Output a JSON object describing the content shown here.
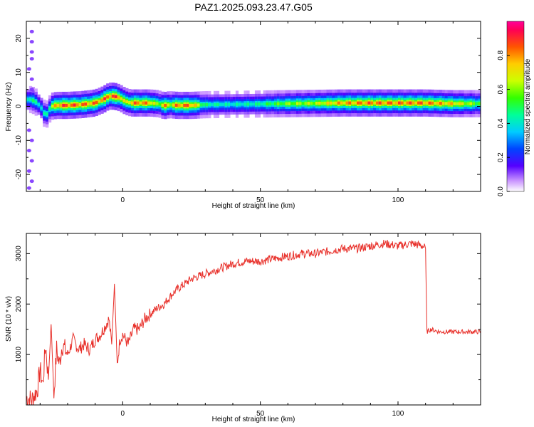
{
  "title": "PAZ1.2025.093.23.47.G05",
  "chart_data": [
    {
      "type": "heatmap",
      "xlabel": "Height of straight line (km)",
      "ylabel": "Frequency (Hz)",
      "xlim": [
        -35,
        130
      ],
      "ylim": [
        -25,
        25
      ],
      "xticks": [
        0,
        50,
        100
      ],
      "yticks": [
        -20,
        -10,
        0,
        10,
        20
      ],
      "grid": false,
      "ridge": {
        "description_points_x": [
          -33,
          -31,
          -29,
          -28,
          -26,
          -24,
          -20,
          -15,
          -10,
          -7,
          -5,
          -3,
          -1,
          1,
          3,
          5,
          10,
          13,
          15,
          17,
          20,
          25,
          30,
          40,
          50,
          60,
          70,
          80,
          90,
          100,
          110,
          120,
          130
        ],
        "freq": [
          2,
          1,
          -1,
          -3,
          0,
          0.3,
          0.3,
          0.5,
          1,
          2,
          3,
          3,
          2.5,
          1.5,
          1,
          1,
          1,
          0.8,
          0.2,
          0.5,
          0.3,
          0.3,
          0.5,
          0.6,
          0.7,
          0.8,
          0.9,
          1,
          1,
          1,
          1,
          0.8,
          0.8
        ],
        "amplitude": [
          0.5,
          0.5,
          0.4,
          0.5,
          0.6,
          0.9,
          0.95,
          0.9,
          0.9,
          0.9,
          0.95,
          0.95,
          0.9,
          0.7,
          0.85,
          0.9,
          0.85,
          0.6,
          0.9,
          0.7,
          0.9,
          0.9,
          0.5,
          0.45,
          0.5,
          0.65,
          0.7,
          0.85,
          0.9,
          0.9,
          0.9,
          0.8,
          0.6
        ]
      },
      "noise_points": [
        {
          "x": -33,
          "y": 22
        },
        {
          "x": -33,
          "y": 19
        },
        {
          "x": -33,
          "y": 16
        },
        {
          "x": -33,
          "y": 14
        },
        {
          "x": -34,
          "y": 11
        },
        {
          "x": -33,
          "y": 8
        },
        {
          "x": -33,
          "y": 5
        },
        {
          "x": -34,
          "y": -7
        },
        {
          "x": -33,
          "y": -10
        },
        {
          "x": -34,
          "y": -13
        },
        {
          "x": -33,
          "y": -16
        },
        {
          "x": -34,
          "y": -19
        },
        {
          "x": -33,
          "y": -22
        },
        {
          "x": -34,
          "y": -24
        }
      ],
      "colorbar": {
        "label": "Normalized spectral amplitude",
        "ticks": [
          "0.0",
          "0.2",
          "0.4",
          "0.6",
          "0.8"
        ],
        "range": [
          0,
          1
        ]
      }
    },
    {
      "type": "line",
      "xlabel": "Height of straight line (km)",
      "ylabel": "SNR (10 * v/v)",
      "xlim": [
        -35,
        130
      ],
      "ylim": [
        0,
        3400
      ],
      "xticks": [
        0,
        50,
        100
      ],
      "yticks": [
        1000,
        2000,
        3000
      ],
      "grid": false,
      "series": [
        {
          "color": "#e8302a",
          "x": [
            -35,
            -33,
            -31,
            -30,
            -29,
            -28,
            -27,
            -26,
            -25,
            -24,
            -23,
            -22,
            -20,
            -18,
            -16,
            -14,
            -12,
            -10,
            -8,
            -6,
            -5,
            -4,
            -3,
            -2,
            -1,
            0,
            2,
            4,
            6,
            8,
            10,
            12,
            15,
            18,
            20,
            25,
            30,
            35,
            40,
            45,
            50,
            55,
            60,
            65,
            70,
            75,
            80,
            85,
            90,
            95,
            100,
            105,
            109,
            110,
            110.5,
            112,
            115,
            120,
            125,
            130
          ],
          "y": [
            150,
            100,
            300,
            700,
            400,
            1200,
            500,
            1600,
            200,
            1100,
            800,
            1200,
            1000,
            1300,
            1100,
            1200,
            1100,
            1300,
            1400,
            1600,
            1700,
            1200,
            2400,
            800,
            1300,
            1400,
            1200,
            1500,
            1500,
            1700,
            1800,
            1900,
            2000,
            2200,
            2300,
            2500,
            2600,
            2700,
            2800,
            2850,
            2850,
            2900,
            2950,
            3000,
            3000,
            3050,
            3100,
            3100,
            3150,
            3200,
            3150,
            3200,
            3150,
            3100,
            1450,
            1500,
            1450,
            1450,
            1450,
            1450
          ]
        }
      ]
    }
  ]
}
